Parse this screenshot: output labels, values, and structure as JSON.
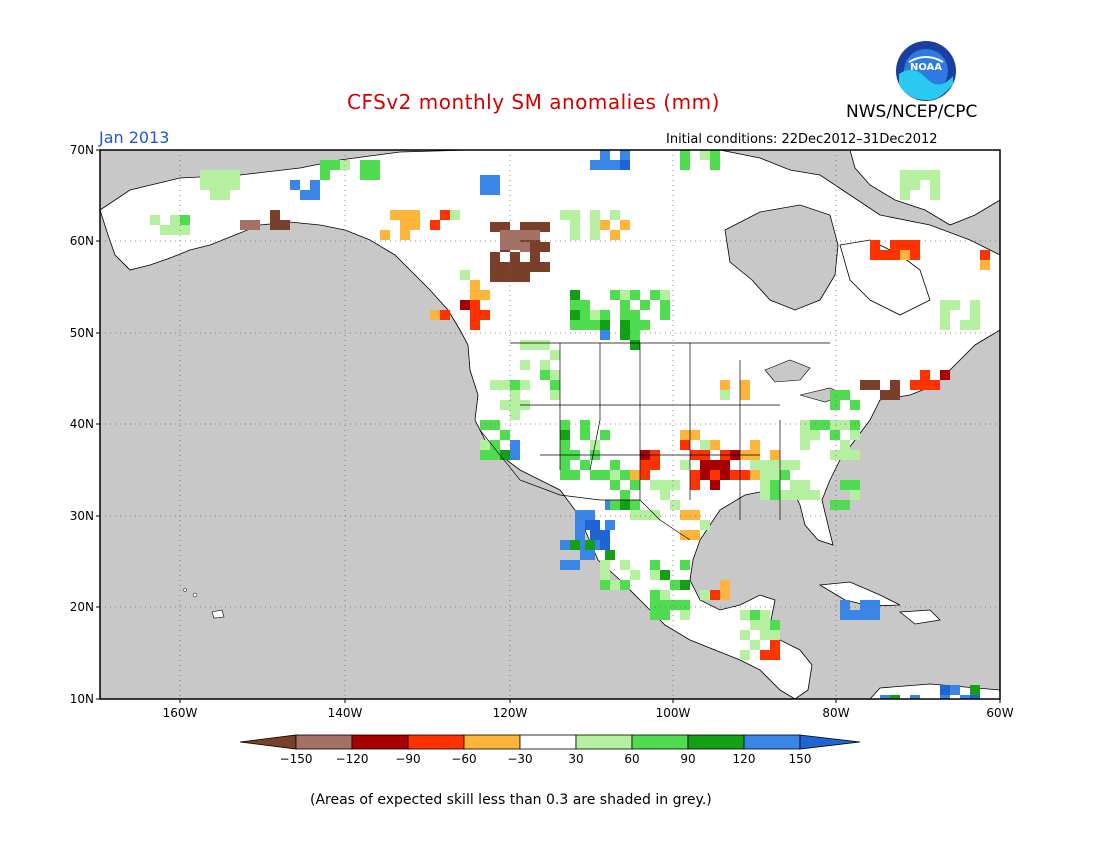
{
  "header": {
    "title": "CFSv2 monthly SM anomalies (mm)",
    "month": "Jan 2013",
    "org": "NWS/NCEP/CPC",
    "initial_conditions": "Initial conditions: 22Dec2012–31Dec2012",
    "logo_text": "NOAA"
  },
  "axes": {
    "lat_labels": [
      "70N",
      "60N",
      "50N",
      "40N",
      "30N",
      "20N",
      "10N"
    ],
    "lon_labels": [
      "160W",
      "140W",
      "120W",
      "100W",
      "80W",
      "60W"
    ]
  },
  "colorbar": {
    "labels": [
      "−150",
      "−120",
      "−90",
      "−60",
      "−30",
      "30",
      "60",
      "90",
      "120",
      "150"
    ],
    "colors": [
      "#7a3f2b",
      "#a57164",
      "#a80000",
      "#ff3300",
      "#ffb43c",
      "#ffffff",
      "#b4f0a0",
      "#50dc50",
      "#14a014",
      "#3a86e6",
      "#1e64d2"
    ]
  },
  "note": "(Areas of expected skill less than 0.3 are shaded in grey.)",
  "colors": {
    "ocean": "#c8c8c8",
    "land_low_skill": "#ffffff",
    "title": "#d40000",
    "month": "#1f57d6"
  }
}
